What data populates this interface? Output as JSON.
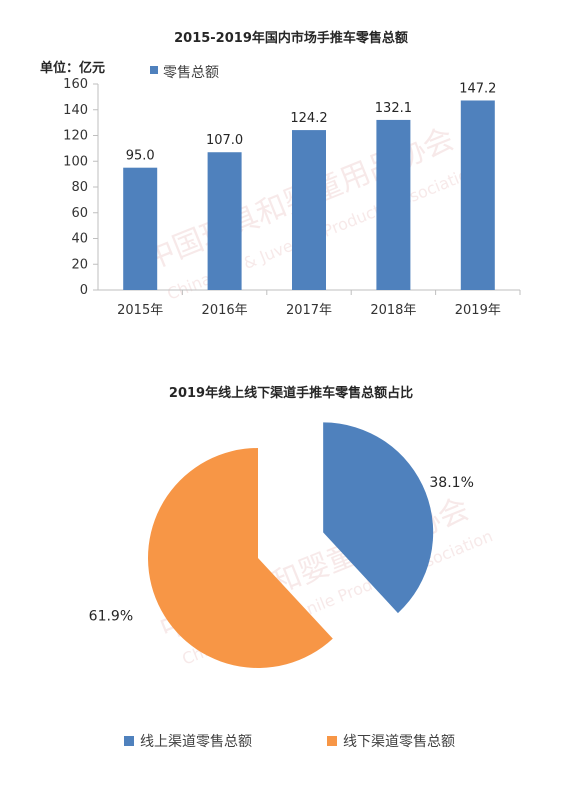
{
  "watermark": {
    "cn": "中国玩具和婴童用品协会",
    "en": "China Toy & Juvenile Products Association"
  },
  "chart_data": [
    {
      "type": "bar",
      "title": "2015-2019年国内市场手推车零售总额",
      "ylabel": "单位：亿元",
      "categories": [
        "2015年",
        "2016年",
        "2017年",
        "2018年",
        "2019年"
      ],
      "series": [
        {
          "name": "零售总额",
          "values": [
            95.0,
            107.0,
            124.2,
            132.1,
            147.2
          ],
          "color": "#4f81bd"
        }
      ],
      "data_labels": [
        "95.0",
        "107.0",
        "124.2",
        "132.1",
        "147.2"
      ],
      "ylim": [
        0,
        160
      ],
      "yticks": [
        0,
        20,
        40,
        60,
        80,
        100,
        120,
        140,
        160
      ],
      "grid": false,
      "legend": "top-left"
    },
    {
      "type": "pie",
      "title": "2019年线上线下渠道手推车零售总额占比",
      "slices": [
        {
          "label": "线上渠道零售总额",
          "value": 38.1,
          "display": "38.1%",
          "color": "#4f81bd",
          "exploded": true
        },
        {
          "label": "线下渠道零售总额",
          "value": 61.9,
          "display": "61.9%",
          "color": "#f79646",
          "exploded": false
        }
      ],
      "legend": "bottom"
    }
  ]
}
